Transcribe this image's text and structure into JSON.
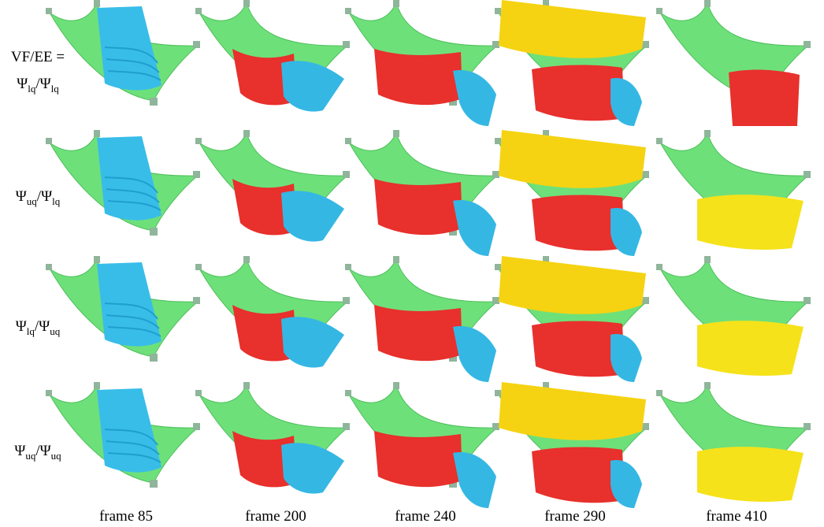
{
  "row_header": "VF/EE =",
  "symbol": "Ψ",
  "slash": "/",
  "rows": [
    {
      "first_sub": "lq",
      "second_sub": "lq"
    },
    {
      "first_sub": "uq",
      "second_sub": "lq"
    },
    {
      "first_sub": "lq",
      "second_sub": "uq"
    },
    {
      "first_sub": "uq",
      "second_sub": "uq"
    }
  ],
  "columns": [
    "frame 85",
    "frame 200",
    "frame 240",
    "frame 290",
    "frame 410"
  ]
}
